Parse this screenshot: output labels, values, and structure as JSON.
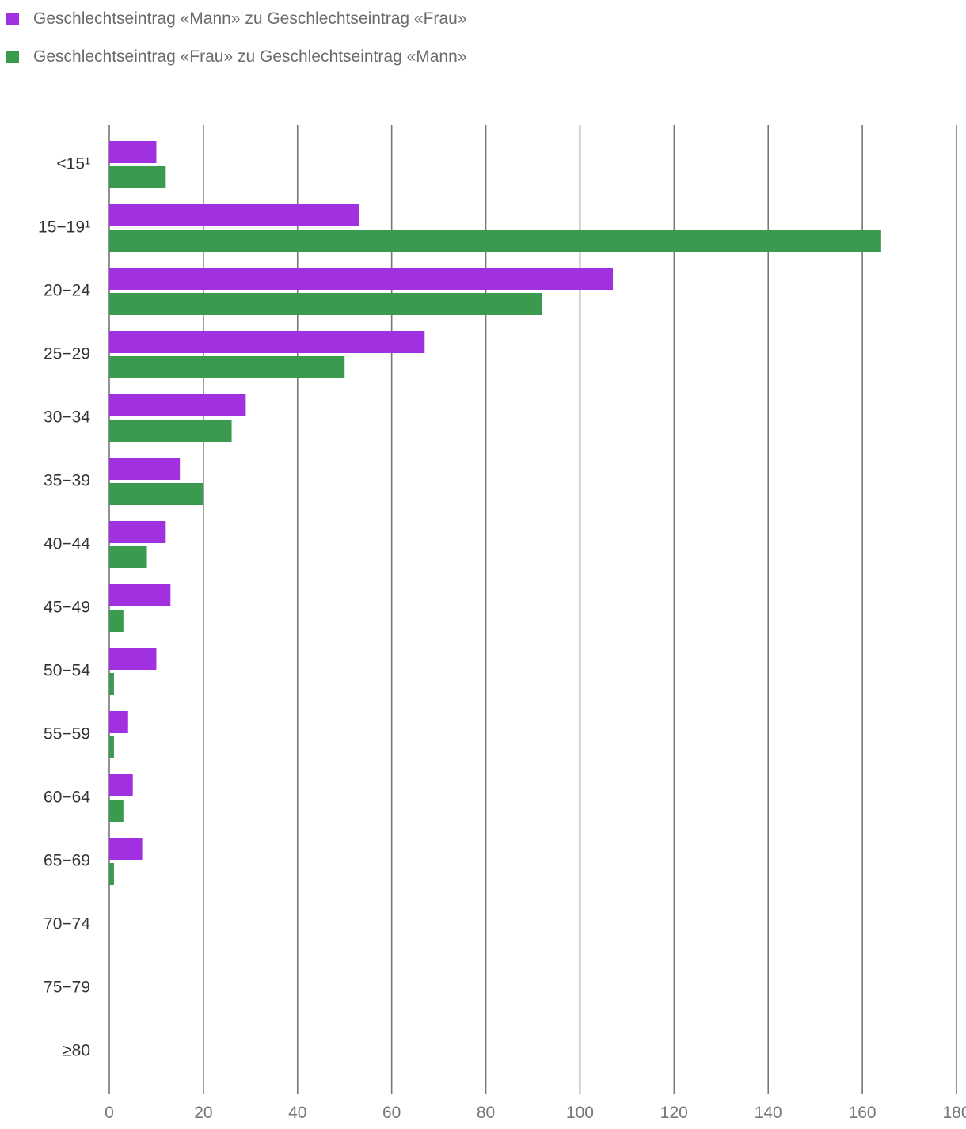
{
  "legend": [
    {
      "label": "Geschlechtseintrag «Mann» zu Geschlechtseintrag «Frau»",
      "color": "#a131e0"
    },
    {
      "label": "Geschlechtseintrag «Frau» zu Geschlechtseintrag «Mann»",
      "color": "#3a9b4f"
    }
  ],
  "chart_data": {
    "type": "bar",
    "orientation": "horizontal",
    "categories": [
      "<15¹",
      "15−19¹",
      "20−24",
      "25−29",
      "30−34",
      "35−39",
      "40−44",
      "45−49",
      "50−54",
      "55−59",
      "60−64",
      "65−69",
      "70−74",
      "75−79",
      "≥80"
    ],
    "series": [
      {
        "name": "Geschlechtseintrag «Mann» zu Geschlechtseintrag «Frau»",
        "color": "#a131e0",
        "values": [
          10,
          53,
          107,
          67,
          29,
          15,
          12,
          13,
          10,
          4,
          5,
          7,
          0,
          0,
          0
        ]
      },
      {
        "name": "Geschlechtseintrag «Frau» zu Geschlechtseintrag «Mann»",
        "color": "#3a9b4f",
        "values": [
          12,
          164,
          92,
          50,
          26,
          20,
          8,
          3,
          1,
          1,
          3,
          1,
          0,
          0,
          0
        ]
      }
    ],
    "xlim": [
      0,
      180
    ],
    "xticks": [
      0,
      20,
      40,
      60,
      80,
      100,
      120,
      140,
      160,
      180
    ],
    "grid": true,
    "legend_position": "top-left"
  }
}
